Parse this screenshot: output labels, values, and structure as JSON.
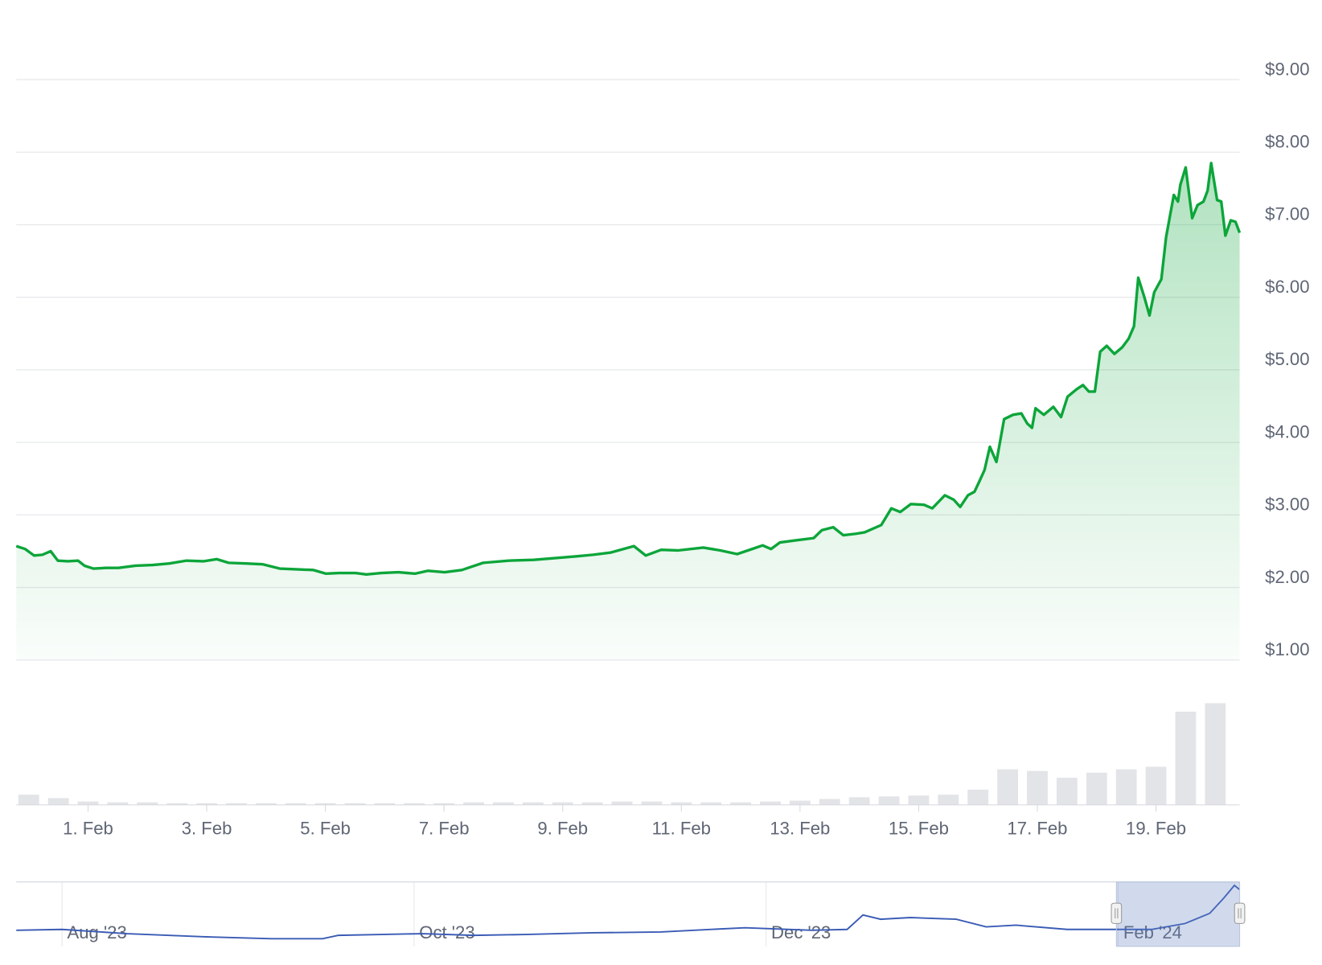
{
  "chart_data": [
    {
      "type": "area",
      "color": "#0ca53a",
      "x": [
        -0.21,
        -0.06,
        0.09,
        0.23,
        0.37,
        0.49,
        0.66,
        0.83,
        0.94,
        1.09,
        1.3,
        1.51,
        1.8,
        2.09,
        2.37,
        2.66,
        2.94,
        3.17,
        3.37,
        3.66,
        3.94,
        4.23,
        4.51,
        4.8,
        5.01,
        5.23,
        5.51,
        5.69,
        5.94,
        6.23,
        6.51,
        6.73,
        7.01,
        7.3,
        7.66,
        8.09,
        8.51,
        8.8,
        9.23,
        9.51,
        9.8,
        10.2,
        10.4,
        10.66,
        10.94,
        11.37,
        11.66,
        11.94,
        12.23,
        12.37,
        12.51,
        12.66,
        12.94,
        13.23,
        13.37,
        13.56,
        13.73,
        13.94,
        14.09,
        14.37,
        14.54,
        14.69,
        14.87,
        15.09,
        15.23,
        15.44,
        15.59,
        15.7,
        15.83,
        15.94,
        16.01,
        16.11,
        16.2,
        16.31,
        16.44,
        16.59,
        16.73,
        16.83,
        16.91,
        16.97,
        17.11,
        17.27,
        17.4,
        17.51,
        17.66,
        17.77,
        17.87,
        17.97,
        18.06,
        18.17,
        18.3,
        18.43,
        18.54,
        18.63,
        18.7,
        18.8,
        18.89,
        18.97,
        19.09,
        19.17,
        19.3,
        19.37,
        19.41,
        19.5,
        19.61,
        19.7,
        19.8,
        19.87,
        19.93,
        20.03,
        20.1,
        20.17,
        20.26,
        20.34,
        20.41
      ],
      "values": [
        2.57,
        2.53,
        2.44,
        2.45,
        2.5,
        2.37,
        2.36,
        2.37,
        2.3,
        2.26,
        2.27,
        2.27,
        2.3,
        2.31,
        2.33,
        2.37,
        2.36,
        2.39,
        2.34,
        2.33,
        2.32,
        2.26,
        2.25,
        2.24,
        2.19,
        2.2,
        2.2,
        2.18,
        2.2,
        2.21,
        2.19,
        2.23,
        2.21,
        2.24,
        2.34,
        2.37,
        2.38,
        2.4,
        2.43,
        2.45,
        2.48,
        2.57,
        2.44,
        2.52,
        2.51,
        2.55,
        2.51,
        2.46,
        2.54,
        2.58,
        2.53,
        2.62,
        2.65,
        2.68,
        2.79,
        2.83,
        2.72,
        2.74,
        2.76,
        2.86,
        3.09,
        3.04,
        3.15,
        3.14,
        3.09,
        3.27,
        3.21,
        3.11,
        3.27,
        3.32,
        3.44,
        3.62,
        3.94,
        3.73,
        4.32,
        4.38,
        4.4,
        4.26,
        4.2,
        4.47,
        4.38,
        4.49,
        4.35,
        4.63,
        4.73,
        4.79,
        4.7,
        4.7,
        5.25,
        5.33,
        5.22,
        5.31,
        5.43,
        5.6,
        6.27,
        6.01,
        5.75,
        6.07,
        6.25,
        6.83,
        7.41,
        7.32,
        7.55,
        7.79,
        7.09,
        7.27,
        7.32,
        7.47,
        7.85,
        7.34,
        7.32,
        6.85,
        7.06,
        7.04,
        6.89
      ],
      "xlim": [
        -0.21,
        20.41
      ],
      "xticks": [
        {
          "value": 1,
          "label": "1. Feb"
        },
        {
          "value": 3,
          "label": "3. Feb"
        },
        {
          "value": 5,
          "label": "5. Feb"
        },
        {
          "value": 7,
          "label": "7. Feb"
        },
        {
          "value": 9,
          "label": "9. Feb"
        },
        {
          "value": 11,
          "label": "11. Feb"
        },
        {
          "value": 13,
          "label": "13. Feb"
        },
        {
          "value": 15,
          "label": "15. Feb"
        },
        {
          "value": 17,
          "label": "17. Feb"
        },
        {
          "value": 19,
          "label": "19. Feb"
        }
      ],
      "ylim": [
        1,
        9
      ],
      "yticks": [
        {
          "value": 1,
          "label": "$1.00"
        },
        {
          "value": 2,
          "label": "$2.00"
        },
        {
          "value": 3,
          "label": "$3.00"
        },
        {
          "value": 4,
          "label": "$4.00"
        },
        {
          "value": 5,
          "label": "$5.00"
        },
        {
          "value": 6,
          "label": "$6.00"
        },
        {
          "value": 7,
          "label": "$7.00"
        },
        {
          "value": 8,
          "label": "$8.00"
        },
        {
          "value": 9,
          "label": "$9.00"
        }
      ],
      "grid": true,
      "volume": {
        "color": "#e2e4e7",
        "x": [
          0,
          0.5,
          1,
          1.5,
          2,
          2.5,
          3,
          3.5,
          4,
          4.5,
          5,
          5.5,
          6,
          6.5,
          7,
          7.5,
          8,
          8.5,
          9,
          9.5,
          10,
          10.5,
          11,
          11.5,
          12,
          12.5,
          13,
          13.5,
          14,
          14.5,
          15,
          15.5,
          16,
          16.5,
          17,
          17.5,
          18,
          18.5,
          19,
          19.5,
          20
        ],
        "values": [
          12,
          8,
          4,
          3,
          3,
          2,
          2,
          2,
          2,
          2,
          2,
          2,
          2,
          2,
          2,
          3,
          3,
          3,
          3,
          3,
          4,
          4,
          3,
          3,
          3,
          4,
          5,
          7,
          9,
          10,
          11,
          12,
          18,
          42,
          40,
          32,
          38,
          42,
          45,
          110,
          120
        ],
        "ylim": [
          0,
          130
        ]
      }
    },
    {
      "type": "line",
      "color": "#3a5bb5",
      "x": [
        -0.26,
        0,
        0.37,
        0.85,
        1.19,
        1.48,
        1.57,
        1.81,
        2.05,
        2.34,
        2.63,
        3.01,
        3.4,
        3.59,
        3.88,
        4.26,
        4.46,
        4.55,
        4.65,
        4.82,
        5.08,
        5.25,
        5.42,
        5.71,
        6.0,
        6.19,
        6.38,
        6.52,
        6.6,
        6.66,
        6.69
      ],
      "values": [
        2.49,
        2.59,
        2.07,
        1.66,
        1.45,
        1.45,
        1.87,
        1.97,
        2.07,
        1.87,
        1.97,
        2.18,
        2.28,
        2.49,
        2.8,
        2.49,
        2.59,
        4.36,
        3.84,
        4.05,
        3.84,
        2.9,
        3.11,
        2.59,
        2.59,
        2.59,
        3.32,
        4.56,
        6.43,
        7.99,
        7.47
      ],
      "xlim": [
        -0.26,
        6.69
      ],
      "xticks": [
        {
          "value": 0,
          "label": "Aug '23"
        },
        {
          "value": 2,
          "label": "Oct '23"
        },
        {
          "value": 4,
          "label": "Dec '23"
        },
        {
          "value": 6,
          "label": "Feb '24"
        }
      ],
      "ylim": [
        0,
        8.3
      ],
      "selection": [
        5.99,
        6.69
      ]
    }
  ]
}
